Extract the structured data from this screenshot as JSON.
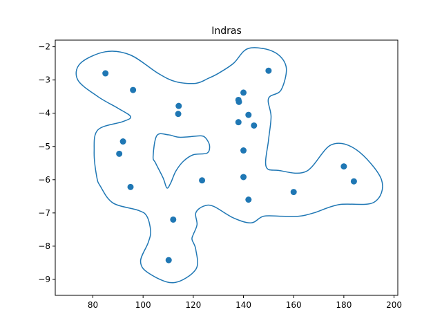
{
  "chart_data": {
    "type": "scatter",
    "title": "Indras",
    "xlabel": "",
    "ylabel": "",
    "xlim": [
      65,
      201.5
    ],
    "ylim": [
      -9.48,
      -1.8
    ],
    "xticks": [
      80,
      100,
      120,
      140,
      160,
      180,
      200
    ],
    "yticks": [
      -9,
      -8,
      -7,
      -6,
      -5,
      -4,
      -3,
      -2
    ],
    "grid": false,
    "colors": {
      "accent": "#1f77b4",
      "axes": "#000000",
      "background": "#ffffff"
    },
    "series": [
      {
        "type": "scatter",
        "points": [
          [
            85,
            -2.8
          ],
          [
            96,
            -3.3
          ],
          [
            114.2,
            -3.78
          ],
          [
            114,
            -4.02
          ],
          [
            150,
            -2.72
          ],
          [
            140,
            -3.38
          ],
          [
            138,
            -3.6
          ],
          [
            138.2,
            -3.66
          ],
          [
            142,
            -4.05
          ],
          [
            138,
            -4.27
          ],
          [
            144.2,
            -4.37
          ],
          [
            92,
            -4.85
          ],
          [
            90.5,
            -5.22
          ],
          [
            140,
            -5.12
          ],
          [
            95,
            -6.22
          ],
          [
            123.5,
            -6.02
          ],
          [
            140,
            -5.92
          ],
          [
            180,
            -5.6
          ],
          [
            184,
            -6.05
          ],
          [
            160,
            -6.37
          ],
          [
            142,
            -6.6
          ],
          [
            112,
            -7.2
          ],
          [
            110.2,
            -8.42
          ]
        ]
      },
      {
        "type": "line",
        "closed": true,
        "points": [
          [
            85,
            -2.15
          ],
          [
            95,
            -2.25
          ],
          [
            106,
            -2.8
          ],
          [
            113,
            -3.05
          ],
          [
            121,
            -3.1
          ],
          [
            126,
            -2.95
          ],
          [
            130,
            -2.8
          ],
          [
            136,
            -2.5
          ],
          [
            142,
            -2.05
          ],
          [
            152,
            -2.15
          ],
          [
            157,
            -2.6
          ],
          [
            155,
            -3.3
          ],
          [
            150,
            -3.55
          ],
          [
            151,
            -4.1
          ],
          [
            150,
            -4.8
          ],
          [
            149,
            -5.6
          ],
          [
            154,
            -5.72
          ],
          [
            165,
            -5.75
          ],
          [
            175,
            -4.95
          ],
          [
            185,
            -5.1
          ],
          [
            195,
            -6.0
          ],
          [
            192,
            -6.68
          ],
          [
            178,
            -6.75
          ],
          [
            168,
            -7.0
          ],
          [
            162,
            -7.1
          ],
          [
            155,
            -7.1
          ],
          [
            148,
            -7.1
          ],
          [
            143,
            -7.3
          ],
          [
            136,
            -7.15
          ],
          [
            128,
            -6.8
          ],
          [
            124,
            -6.8
          ],
          [
            121,
            -7.0
          ],
          [
            121.5,
            -7.35
          ],
          [
            120,
            -7.65
          ],
          [
            119.5,
            -7.8
          ],
          [
            121,
            -8.1
          ],
          [
            121,
            -8.7
          ],
          [
            112,
            -9.1
          ],
          [
            102,
            -8.8
          ],
          [
            99,
            -8.45
          ],
          [
            102,
            -7.9
          ],
          [
            103,
            -7.55
          ],
          [
            101.5,
            -7.1
          ],
          [
            98,
            -6.92
          ],
          [
            88,
            -6.7
          ],
          [
            83,
            -6.2
          ],
          [
            81.5,
            -5.9
          ],
          [
            80.5,
            -5.15
          ],
          [
            82,
            -4.5
          ],
          [
            92,
            -4.25
          ],
          [
            95,
            -4.1
          ],
          [
            90,
            -3.85
          ],
          [
            82,
            -3.5
          ],
          [
            74,
            -3.0
          ],
          [
            75,
            -2.5
          ]
        ]
      },
      {
        "type": "line",
        "closed": true,
        "points": [
          [
            105.5,
            -4.67
          ],
          [
            110,
            -4.65
          ],
          [
            114,
            -4.72
          ],
          [
            118,
            -4.71
          ],
          [
            123,
            -4.68
          ],
          [
            125,
            -4.75
          ],
          [
            126.5,
            -4.98
          ],
          [
            125.5,
            -5.2
          ],
          [
            120,
            -5.25
          ],
          [
            116,
            -5.45
          ],
          [
            113,
            -5.75
          ],
          [
            111,
            -6.1
          ],
          [
            109.5,
            -6.25
          ],
          [
            108,
            -5.95
          ],
          [
            105,
            -5.5
          ],
          [
            104,
            -5.3
          ]
        ]
      }
    ]
  }
}
